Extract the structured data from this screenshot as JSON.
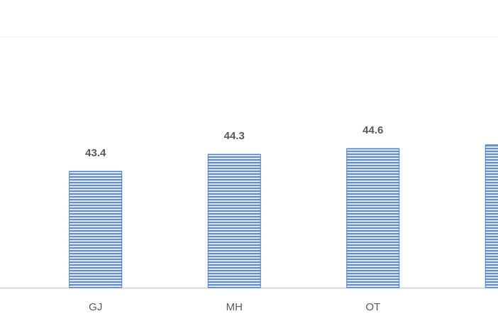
{
  "chart_data": {
    "type": "bar",
    "categories": [
      "GJ",
      "MH",
      "OT",
      null
    ],
    "values": [
      43.4,
      44.3,
      44.6,
      44.8
    ],
    "value_labels": [
      "43.4",
      "44.3",
      "44.6",
      null
    ],
    "color": "#4a7bbd",
    "ylim": [
      37.25,
      50.5
    ]
  }
}
